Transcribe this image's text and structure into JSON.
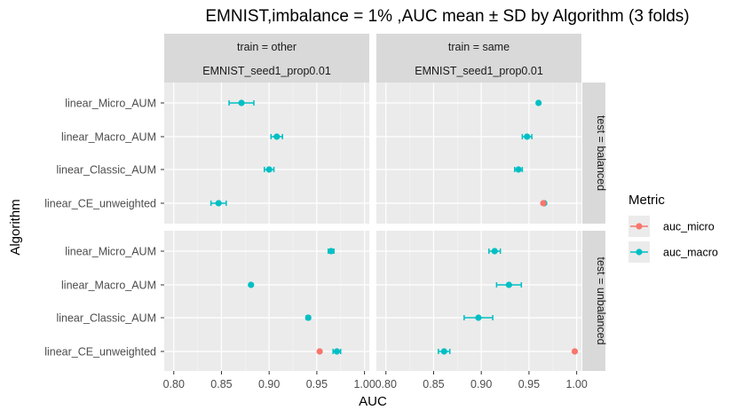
{
  "chart_data": {
    "type": "scatter",
    "title": "EMNIST,imbalance = 1% ,AUC mean ± SD by Algorithm (3 folds)",
    "xlabel": "AUC",
    "ylabel": "Algorithm",
    "xlim": [
      0.79,
      1.005
    ],
    "x_ticks": [
      0.8,
      0.85,
      0.9,
      0.95,
      1.0
    ],
    "x_tick_labels": [
      "0.80",
      "0.85",
      "0.90",
      "0.95",
      "1.00"
    ],
    "categories": [
      "linear_Micro_AUM",
      "linear_Macro_AUM",
      "linear_Classic_AUM",
      "linear_CE_unweighted"
    ],
    "col_strips": [
      {
        "line1": "train = other",
        "line2": "EMNIST_seed1_prop0.01"
      },
      {
        "line1": "train = same",
        "line2": "EMNIST_seed1_prop0.01"
      }
    ],
    "row_strips": [
      "test = balanced",
      "test = unbalanced"
    ],
    "legend": {
      "title": "Metric",
      "position": "right",
      "items": [
        {
          "label": "auc_micro",
          "color": "#F8766D"
        },
        {
          "label": "auc_macro",
          "color": "#00BFC4"
        }
      ]
    },
    "colors": {
      "auc_micro": "#F8766D",
      "auc_macro": "#00BFC4"
    },
    "grid": true,
    "panels": [
      {
        "row": 0,
        "col": 0,
        "points": [
          {
            "algorithm": "linear_Micro_AUM",
            "metric": "auc_macro",
            "mean": 0.871,
            "sd": 0.013
          },
          {
            "algorithm": "linear_Macro_AUM",
            "metric": "auc_macro",
            "mean": 0.908,
            "sd": 0.006
          },
          {
            "algorithm": "linear_Classic_AUM",
            "metric": "auc_macro",
            "mean": 0.9,
            "sd": 0.005
          },
          {
            "algorithm": "linear_CE_unweighted",
            "metric": "auc_macro",
            "mean": 0.847,
            "sd": 0.008
          }
        ]
      },
      {
        "row": 0,
        "col": 1,
        "points": [
          {
            "algorithm": "linear_Micro_AUM",
            "metric": "auc_macro",
            "mean": 0.96,
            "sd": 0.0
          },
          {
            "algorithm": "linear_Macro_AUM",
            "metric": "auc_macro",
            "mean": 0.948,
            "sd": 0.005
          },
          {
            "algorithm": "linear_Classic_AUM",
            "metric": "auc_macro",
            "mean": 0.939,
            "sd": 0.004
          },
          {
            "algorithm": "linear_CE_unweighted",
            "metric": "auc_macro",
            "mean": 0.966,
            "sd": 0.0
          },
          {
            "algorithm": "linear_CE_unweighted",
            "metric": "auc_micro",
            "mean": 0.965,
            "sd": 0.0
          }
        ]
      },
      {
        "row": 1,
        "col": 0,
        "points": [
          {
            "algorithm": "linear_Micro_AUM",
            "metric": "auc_macro",
            "mean": 0.965,
            "sd": 0.003
          },
          {
            "algorithm": "linear_Macro_AUM",
            "metric": "auc_macro",
            "mean": 0.881,
            "sd": 0.0
          },
          {
            "algorithm": "linear_Classic_AUM",
            "metric": "auc_macro",
            "mean": 0.941,
            "sd": 0.002
          },
          {
            "algorithm": "linear_CE_unweighted",
            "metric": "auc_macro",
            "mean": 0.971,
            "sd": 0.004
          },
          {
            "algorithm": "linear_CE_unweighted",
            "metric": "auc_micro",
            "mean": 0.953,
            "sd": 0.0
          }
        ]
      },
      {
        "row": 1,
        "col": 1,
        "points": [
          {
            "algorithm": "linear_Micro_AUM",
            "metric": "auc_macro",
            "mean": 0.914,
            "sd": 0.006
          },
          {
            "algorithm": "linear_Macro_AUM",
            "metric": "auc_macro",
            "mean": 0.929,
            "sd": 0.013
          },
          {
            "algorithm": "linear_Classic_AUM",
            "metric": "auc_macro",
            "mean": 0.897,
            "sd": 0.015
          },
          {
            "algorithm": "linear_CE_unweighted",
            "metric": "auc_macro",
            "mean": 0.861,
            "sd": 0.006
          },
          {
            "algorithm": "linear_CE_unweighted",
            "metric": "auc_micro",
            "mean": 0.998,
            "sd": 0.0
          }
        ]
      }
    ]
  }
}
